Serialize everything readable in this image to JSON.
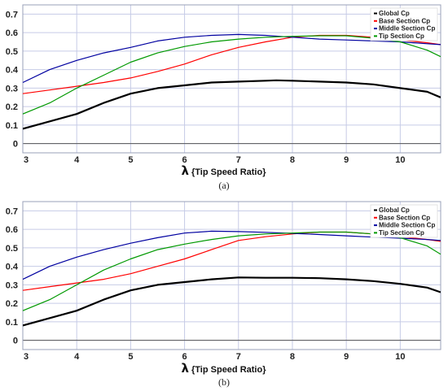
{
  "chart_data": [
    {
      "type": "line",
      "caption": "(a)",
      "xlabel_symbol": "λ",
      "xlabel": "{Tip Speed Ratio}",
      "xlim": [
        3,
        10.75
      ],
      "ylim": [
        -0.05,
        0.75
      ],
      "xticks": [
        "3",
        "4",
        "5",
        "6",
        "7",
        "8",
        "9",
        "10"
      ],
      "yticks": [
        "0",
        "0.1",
        "0.2",
        "0.3",
        "0.4",
        "0.5",
        "0.6",
        "0.7"
      ],
      "grid": true,
      "legend_position": "top-right",
      "series": [
        {
          "name": "Global Cp",
          "color": "#000000",
          "x": [
            3,
            3.5,
            4,
            4.5,
            5,
            5.5,
            6,
            6.5,
            7,
            7.5,
            7.7,
            8,
            8.5,
            9,
            9.5,
            10,
            10.5,
            10.75
          ],
          "y": [
            0.08,
            0.12,
            0.16,
            0.22,
            0.27,
            0.3,
            0.315,
            0.33,
            0.335,
            0.34,
            0.342,
            0.34,
            0.335,
            0.33,
            0.32,
            0.3,
            0.28,
            0.25
          ]
        },
        {
          "name": "Base Section Cp",
          "color": "#ff0000",
          "x": [
            3,
            3.5,
            4,
            4.5,
            5,
            5.5,
            6,
            6.5,
            7,
            7.5,
            8,
            8.5,
            9,
            9.5,
            10,
            10.5,
            10.75
          ],
          "y": [
            0.27,
            0.29,
            0.31,
            0.33,
            0.355,
            0.39,
            0.43,
            0.48,
            0.52,
            0.55,
            0.575,
            0.585,
            0.585,
            0.575,
            0.56,
            0.545,
            0.535
          ]
        },
        {
          "name": "Middle Section Cp",
          "color": "#0000a0",
          "x": [
            3,
            3.5,
            4,
            4.5,
            5,
            5.5,
            6,
            6.5,
            7,
            7.5,
            8,
            8.5,
            9,
            9.5,
            10,
            10.5,
            10.75
          ],
          "y": [
            0.33,
            0.4,
            0.45,
            0.49,
            0.52,
            0.555,
            0.575,
            0.585,
            0.59,
            0.585,
            0.575,
            0.565,
            0.56,
            0.555,
            0.55,
            0.54,
            0.535
          ]
        },
        {
          "name": "Tip Section Cp",
          "color": "#009900",
          "x": [
            3,
            3.5,
            4,
            4.5,
            5,
            5.5,
            6,
            6.5,
            7,
            7.5,
            8,
            8.5,
            9,
            9.5,
            10,
            10.5,
            10.75
          ],
          "y": [
            0.16,
            0.22,
            0.3,
            0.37,
            0.44,
            0.49,
            0.525,
            0.55,
            0.565,
            0.575,
            0.58,
            0.583,
            0.583,
            0.57,
            0.55,
            0.505,
            0.47
          ]
        }
      ]
    },
    {
      "type": "line",
      "caption": "(b)",
      "xlabel_symbol": "λ",
      "xlabel": "{Tip Speed Ratio}",
      "xlim": [
        3,
        10.75
      ],
      "ylim": [
        -0.05,
        0.75
      ],
      "xticks": [
        "3",
        "4",
        "5",
        "6",
        "7",
        "8",
        "9",
        "10"
      ],
      "yticks": [
        "0",
        "0.1",
        "0.2",
        "0.3",
        "0.4",
        "0.5",
        "0.6",
        "0.7"
      ],
      "grid": true,
      "legend_position": "top-right",
      "series": [
        {
          "name": "Global Cp",
          "color": "#000000",
          "x": [
            3,
            3.5,
            4,
            4.5,
            5,
            5.5,
            6,
            6.5,
            7,
            7.5,
            8,
            8.5,
            9,
            9.5,
            10,
            10.5,
            10.75
          ],
          "y": [
            0.08,
            0.12,
            0.16,
            0.22,
            0.27,
            0.3,
            0.315,
            0.33,
            0.34,
            0.338,
            0.338,
            0.336,
            0.33,
            0.32,
            0.305,
            0.285,
            0.26
          ]
        },
        {
          "name": "Base Section Cp",
          "color": "#ff0000",
          "x": [
            3,
            3.5,
            4,
            4.5,
            5,
            5.5,
            6,
            6.5,
            7,
            7.5,
            8,
            8.5,
            9,
            9.5,
            10,
            10.5,
            10.75
          ],
          "y": [
            0.27,
            0.29,
            0.31,
            0.33,
            0.36,
            0.4,
            0.44,
            0.49,
            0.54,
            0.56,
            0.575,
            0.585,
            0.585,
            0.575,
            0.56,
            0.545,
            0.535
          ]
        },
        {
          "name": "Middle Section Cp",
          "color": "#0000a0",
          "x": [
            3,
            3.5,
            4,
            4.5,
            5,
            5.5,
            6,
            6.5,
            7,
            7.5,
            8,
            8.5,
            9,
            9.5,
            10,
            10.5,
            10.75
          ],
          "y": [
            0.33,
            0.4,
            0.45,
            0.49,
            0.525,
            0.555,
            0.58,
            0.59,
            0.588,
            0.584,
            0.578,
            0.572,
            0.565,
            0.558,
            0.552,
            0.545,
            0.54
          ]
        },
        {
          "name": "Tip Section Cp",
          "color": "#009900",
          "x": [
            3,
            3.5,
            4,
            4.5,
            5,
            5.5,
            6,
            6.5,
            7,
            7.5,
            8,
            8.5,
            9,
            9.5,
            10,
            10.5,
            10.75
          ],
          "y": [
            0.16,
            0.22,
            0.3,
            0.38,
            0.44,
            0.49,
            0.52,
            0.545,
            0.565,
            0.575,
            0.58,
            0.585,
            0.585,
            0.575,
            0.555,
            0.51,
            0.465
          ]
        }
      ]
    }
  ]
}
